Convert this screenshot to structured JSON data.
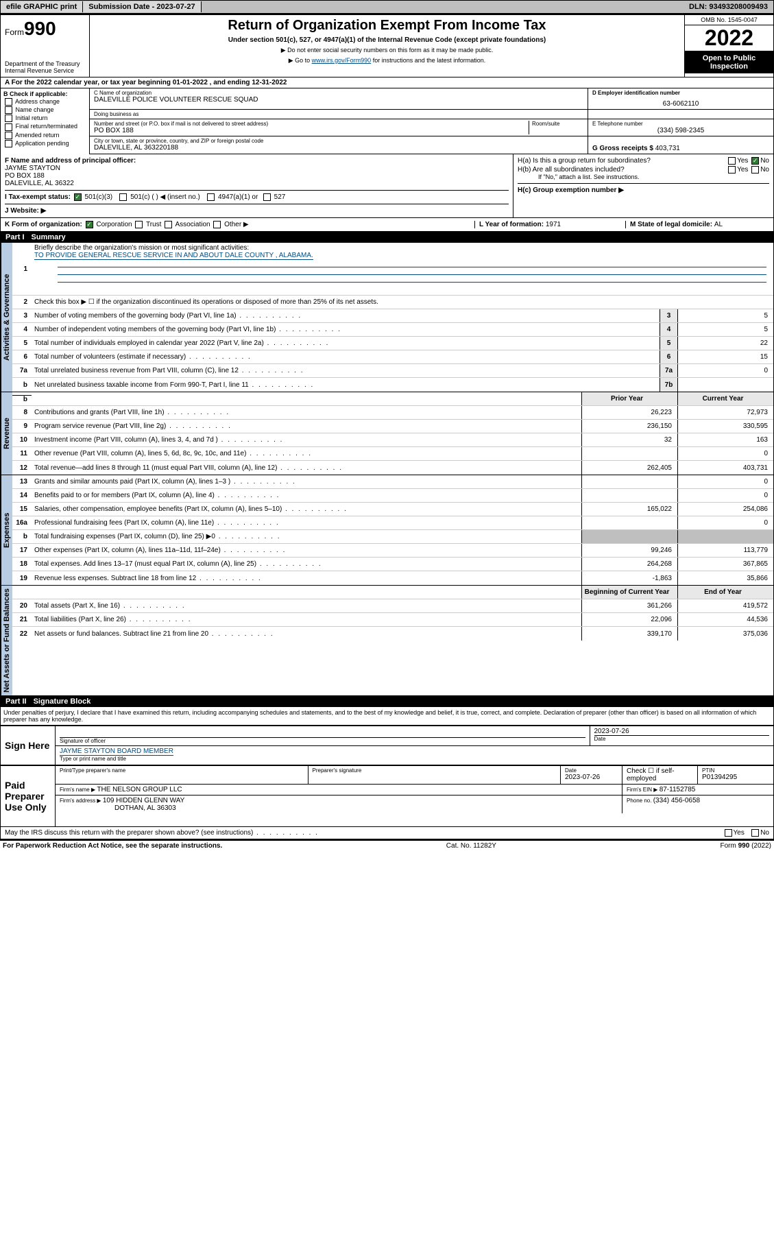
{
  "topbar": {
    "efile": "efile GRAPHIC print",
    "submission_label": "Submission Date - ",
    "submission_date": "2023-07-27",
    "dln_label": "DLN: ",
    "dln": "93493208009493"
  },
  "header": {
    "form_prefix": "Form",
    "form_num": "990",
    "dept": "Department of the Treasury\nInternal Revenue Service",
    "title": "Return of Organization Exempt From Income Tax",
    "subtitle": "Under section 501(c), 527, or 4947(a)(1) of the Internal Revenue Code (except private foundations)",
    "note1": "▶ Do not enter social security numbers on this form as it may be made public.",
    "note2_pre": "▶ Go to ",
    "note2_link": "www.irs.gov/Form990",
    "note2_post": " for instructions and the latest information.",
    "omb": "OMB No. 1545-0047",
    "year": "2022",
    "inspect": "Open to Public Inspection"
  },
  "lineA": "A For the 2022 calendar year, or tax year beginning 01-01-2022   , and ending 12-31-2022",
  "colB": {
    "label": "B Check if applicable:",
    "items": [
      "Address change",
      "Name change",
      "Initial return",
      "Final return/terminated",
      "Amended return",
      "Application pending"
    ]
  },
  "blockC": {
    "name_lbl": "C Name of organization",
    "name": "DALEVILLE POLICE VOLUNTEER RESCUE SQUAD",
    "dba_lbl": "Doing business as",
    "dba": "",
    "addr_lbl": "Number and street (or P.O. box if mail is not delivered to street address)",
    "room_lbl": "Room/suite",
    "addr": "PO BOX 188",
    "city_lbl": "City or town, state or province, country, and ZIP or foreign postal code",
    "city": "DALEVILLE, AL  363220188"
  },
  "blockD": {
    "lbl": "D Employer identification number",
    "val": "63-6062110"
  },
  "blockE": {
    "lbl": "E Telephone number",
    "val": "(334) 598-2345"
  },
  "blockG": {
    "lbl": "G Gross receipts $ ",
    "val": "403,731"
  },
  "blockF": {
    "lbl": "F  Name and address of principal officer:",
    "name": "JAYME STAYTON",
    "addr1": "PO BOX 188",
    "addr2": "DALEVILLE, AL  36322"
  },
  "blockH": {
    "a": "H(a)  Is this a group return for subordinates?",
    "b": "H(b)  Are all subordinates included?",
    "b_note": "If \"No,\" attach a list. See instructions.",
    "c": "H(c)  Group exemption number ▶",
    "yes": "Yes",
    "no": "No"
  },
  "lineI": {
    "lbl": "I  Tax-exempt status:",
    "opts": [
      "501(c)(3)",
      "501(c) (  ) ◀ (insert no.)",
      "4947(a)(1) or",
      "527"
    ]
  },
  "lineJ": {
    "lbl": "J  Website: ▶",
    "val": ""
  },
  "lineK": {
    "lbl": "K Form of organization:",
    "opts": [
      "Corporation",
      "Trust",
      "Association",
      "Other ▶"
    ]
  },
  "lineL": {
    "lbl": "L Year of formation: ",
    "val": "1971"
  },
  "lineM": {
    "lbl": "M State of legal domicile: ",
    "val": "AL"
  },
  "part1": {
    "hdr_part": "Part I",
    "hdr_title": "Summary",
    "tabs": [
      "Activities & Governance",
      "Revenue",
      "Expenses",
      "Net Assets or Fund Balances"
    ],
    "q1": "Briefly describe the organization's mission or most significant activities:",
    "q1_ans": "TO PROVIDE GENERAL RESCUE SERVICE IN AND ABOUT DALE COUNTY , ALABAMA.",
    "q2": "Check this box ▶ ☐  if the organization discontinued its operations or disposed of more than 25% of its net assets.",
    "rows_act": [
      {
        "n": "3",
        "t": "Number of voting members of the governing body (Part VI, line 1a)",
        "box": "3",
        "v": "5"
      },
      {
        "n": "4",
        "t": "Number of independent voting members of the governing body (Part VI, line 1b)",
        "box": "4",
        "v": "5"
      },
      {
        "n": "5",
        "t": "Total number of individuals employed in calendar year 2022 (Part V, line 2a)",
        "box": "5",
        "v": "22"
      },
      {
        "n": "6",
        "t": "Total number of volunteers (estimate if necessary)",
        "box": "6",
        "v": "15"
      },
      {
        "n": "7a",
        "t": "Total unrelated business revenue from Part VIII, column (C), line 12",
        "box": "7a",
        "v": "0"
      },
      {
        "n": "b",
        "t": "Net unrelated business taxable income from Form 990-T, Part I, line 11",
        "box": "7b",
        "v": ""
      }
    ],
    "col_prior": "Prior Year",
    "col_curr": "Current Year",
    "rows_rev": [
      {
        "n": "8",
        "t": "Contributions and grants (Part VIII, line 1h)",
        "p": "26,223",
        "c": "72,973"
      },
      {
        "n": "9",
        "t": "Program service revenue (Part VIII, line 2g)",
        "p": "236,150",
        "c": "330,595"
      },
      {
        "n": "10",
        "t": "Investment income (Part VIII, column (A), lines 3, 4, and 7d )",
        "p": "32",
        "c": "163"
      },
      {
        "n": "11",
        "t": "Other revenue (Part VIII, column (A), lines 5, 6d, 8c, 9c, 10c, and 11e)",
        "p": "",
        "c": "0"
      },
      {
        "n": "12",
        "t": "Total revenue—add lines 8 through 11 (must equal Part VIII, column (A), line 12)",
        "p": "262,405",
        "c": "403,731"
      }
    ],
    "rows_exp": [
      {
        "n": "13",
        "t": "Grants and similar amounts paid (Part IX, column (A), lines 1–3 )",
        "p": "",
        "c": "0"
      },
      {
        "n": "14",
        "t": "Benefits paid to or for members (Part IX, column (A), line 4)",
        "p": "",
        "c": "0"
      },
      {
        "n": "15",
        "t": "Salaries, other compensation, employee benefits (Part IX, column (A), lines 5–10)",
        "p": "165,022",
        "c": "254,086"
      },
      {
        "n": "16a",
        "t": "Professional fundraising fees (Part IX, column (A), line 11e)",
        "p": "",
        "c": "0"
      },
      {
        "n": "b",
        "t": "Total fundraising expenses (Part IX, column (D), line 25) ▶0",
        "p": "—",
        "c": "—"
      },
      {
        "n": "17",
        "t": "Other expenses (Part IX, column (A), lines 11a–11d, 11f–24e)",
        "p": "99,246",
        "c": "113,779"
      },
      {
        "n": "18",
        "t": "Total expenses. Add lines 13–17 (must equal Part IX, column (A), line 25)",
        "p": "264,268",
        "c": "367,865"
      },
      {
        "n": "19",
        "t": "Revenue less expenses. Subtract line 18 from line 12",
        "p": "-1,863",
        "c": "35,866"
      }
    ],
    "col_beg": "Beginning of Current Year",
    "col_end": "End of Year",
    "rows_net": [
      {
        "n": "20",
        "t": "Total assets (Part X, line 16)",
        "p": "361,266",
        "c": "419,572"
      },
      {
        "n": "21",
        "t": "Total liabilities (Part X, line 26)",
        "p": "22,096",
        "c": "44,536"
      },
      {
        "n": "22",
        "t": "Net assets or fund balances. Subtract line 21 from line 20",
        "p": "339,170",
        "c": "375,036"
      }
    ]
  },
  "part2": {
    "hdr_part": "Part II",
    "hdr_title": "Signature Block",
    "penalty": "Under penalties of perjury, I declare that I have examined this return, including accompanying schedules and statements, and to the best of my knowledge and belief, it is true, correct, and complete. Declaration of preparer (other than officer) is based on all information of which preparer has any knowledge.",
    "sign_here": "Sign Here",
    "sig_officer_lbl": "Signature of officer",
    "sig_date": "2023-07-26",
    "date_lbl": "Date",
    "officer_name": "JAYME STAYTON  BOARD MEMBER",
    "officer_name_lbl": "Type or print name and title",
    "paid_prep": "Paid Preparer Use Only",
    "prep_name_lbl": "Print/Type preparer's name",
    "prep_sig_lbl": "Preparer's signature",
    "prep_date_lbl": "Date",
    "prep_date": "2023-07-26",
    "check_if": "Check ☐ if self-employed",
    "ptin_lbl": "PTIN",
    "ptin": "P01394295",
    "firm_name_lbl": "Firm's name      ▶ ",
    "firm_name": "THE NELSON GROUP LLC",
    "firm_ein_lbl": "Firm's EIN ▶ ",
    "firm_ein": "87-1152785",
    "firm_addr_lbl": "Firm's address ▶ ",
    "firm_addr": "109 HIDDEN GLENN WAY",
    "firm_city": "DOTHAN, AL  36303",
    "phone_lbl": "Phone no. ",
    "phone": "(334) 456-0658",
    "discuss": "May the IRS discuss this return with the preparer shown above? (see instructions)",
    "yes": "Yes",
    "no": "No"
  },
  "footer": {
    "l": "For Paperwork Reduction Act Notice, see the separate instructions.",
    "m": "Cat. No. 11282Y",
    "r": "Form 990 (2022)"
  },
  "colors": {
    "topbar_bg": "#bfbfbf",
    "link": "#004b80",
    "sidetab_bg": "#b8cce4",
    "check_green": "#2e7d32"
  }
}
